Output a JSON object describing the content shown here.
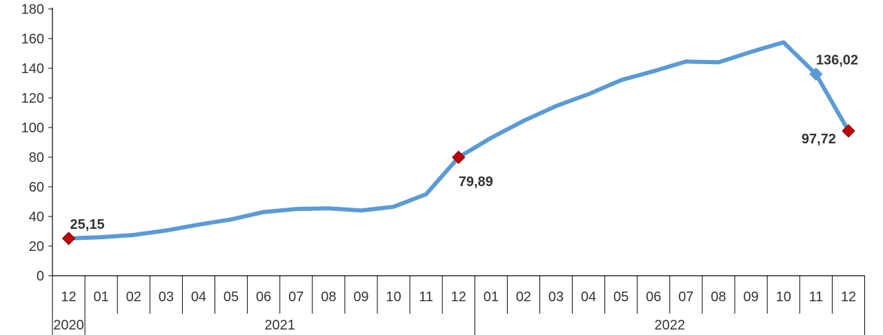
{
  "chart_data": {
    "type": "line",
    "title": "",
    "xlabel": "",
    "ylabel": "",
    "ylim": [
      0,
      180
    ],
    "yticks": [
      0,
      20,
      40,
      60,
      80,
      100,
      120,
      140,
      160,
      180
    ],
    "grid": false,
    "legend": "none",
    "line_color": "#5b9bd5",
    "marker_color": "#c00000",
    "categories": [
      "12",
      "01",
      "02",
      "03",
      "04",
      "05",
      "06",
      "07",
      "08",
      "09",
      "10",
      "11",
      "12",
      "01",
      "02",
      "03",
      "04",
      "05",
      "06",
      "07",
      "08",
      "09",
      "10",
      "11",
      "12"
    ],
    "year_groups": [
      {
        "label": "2020",
        "start": 0,
        "end": 0
      },
      {
        "label": "2021",
        "start": 1,
        "end": 12
      },
      {
        "label": "2022",
        "start": 13,
        "end": 24
      }
    ],
    "series": [
      {
        "values": [
          25.15,
          26,
          27.5,
          30.5,
          34.5,
          38,
          43,
          45,
          45.5,
          44,
          46.5,
          55,
          79.89,
          93,
          104.5,
          114.5,
          122.5,
          132,
          138,
          144.5,
          144,
          151,
          157.5,
          136.02,
          97.72
        ]
      }
    ],
    "highlighted_points": [
      {
        "index": 0,
        "label": "25,15",
        "marker": "diamond-red"
      },
      {
        "index": 12,
        "label": "79,89",
        "marker": "diamond-red"
      },
      {
        "index": 23,
        "label": "136,02",
        "marker": "diamond-blue"
      },
      {
        "index": 24,
        "label": "97,72",
        "marker": "diamond-red"
      }
    ]
  }
}
